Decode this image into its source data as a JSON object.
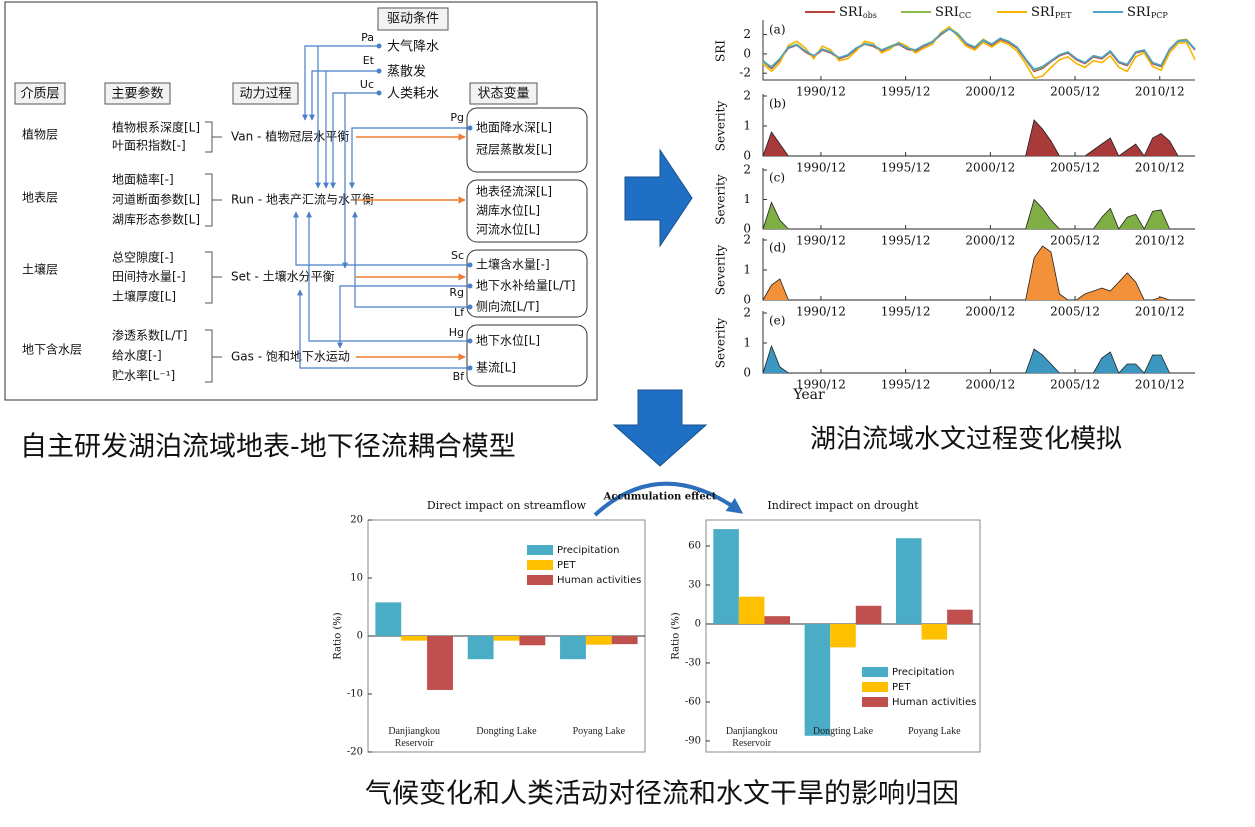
{
  "diagram": {
    "drivers_title": "驱动条件",
    "drivers": [
      {
        "code": "Pa",
        "label": "大气降水"
      },
      {
        "code": "Et",
        "label": "蒸散发"
      },
      {
        "code": "Uc",
        "label": "人类耗水"
      }
    ],
    "headers": [
      "介质层",
      "主要参数",
      "动力过程",
      "状态变量"
    ],
    "layers": [
      {
        "name": "植物层",
        "params": [
          "植物根系深度[L]",
          "叶面积指数[-]"
        ],
        "process": "Van - 植物冠层水平衡",
        "states": [
          {
            "code": "Pg",
            "label": "地面降水深[L]"
          },
          {
            "label": "冠层蒸散发[L]"
          }
        ]
      },
      {
        "name": "地表层",
        "params": [
          "地面糙率[-]",
          "河道断面参数[L]",
          "湖库形态参数[L]"
        ],
        "process": "Run - 地表产汇流与水平衡",
        "states": [
          {
            "label": "地表径流深[L]"
          },
          {
            "label": "湖库水位[L]"
          },
          {
            "label": "河流水位[L]"
          }
        ]
      },
      {
        "name": "土壤层",
        "params": [
          "总空隙度[-]",
          "田间持水量[-]",
          "土壤厚度[L]"
        ],
        "process": "Set - 土壤水分平衡",
        "states": [
          {
            "code": "Sc",
            "label": "土壤含水量[-]"
          },
          {
            "code": "Rg",
            "label": "地下水补给量[L/T]"
          },
          {
            "code": "Lf",
            "label": "侧向流[L/T]"
          }
        ]
      },
      {
        "name": "地下含水层",
        "params": [
          "渗透系数[L/T]",
          "给水度[-]",
          "贮水率[L⁻¹]"
        ],
        "process": "Gas - 饱和地下水运动",
        "states": [
          {
            "code": "Hg",
            "label": "地下水位[L]"
          },
          {
            "code": "Bf",
            "label": "基流[L]"
          }
        ]
      }
    ]
  },
  "captions": {
    "model": "自主研发湖泊流域地表-地下径流耦合模型",
    "simulation": "湖泊流域水文过程变化模拟",
    "attribution": "气候变化和人类活动对径流和水文干旱的影响归因"
  },
  "chart_data": [
    {
      "type": "line",
      "panel_label": "(a)",
      "y_label": "SRI",
      "legend": "above",
      "x": [
        1987.5,
        1988,
        1988.5,
        1989,
        1989.5,
        1990,
        1990.5,
        1991,
        1991.5,
        1992,
        1992.5,
        1993,
        1993.5,
        1994,
        1994.5,
        1995,
        1995.5,
        1996,
        1996.5,
        1997,
        1997.5,
        1998,
        1998.5,
        1999,
        1999.5,
        2000,
        2000.5,
        2001,
        2001.5,
        2002,
        2002.5,
        2003,
        2003.5,
        2004,
        2004.5,
        2005,
        2005.5,
        2006,
        2006.5,
        2007,
        2007.5,
        2008,
        2008.5,
        2009,
        2009.5,
        2010,
        2010.5,
        2011,
        2011.5,
        2012,
        2012.5,
        2013
      ],
      "xlim": [
        1987.5,
        2013
      ],
      "xticks": [
        {
          "value": 1990.92,
          "label": "1990/12"
        },
        {
          "value": 1995.92,
          "label": "1995/12"
        },
        {
          "value": 2000.92,
          "label": "2000/12"
        },
        {
          "value": 2005.92,
          "label": "2005/12"
        },
        {
          "value": 2010.92,
          "label": "2010/12"
        }
      ],
      "ylim": [
        -2.7,
        3.3
      ],
      "yticks": [
        -2,
        0,
        2
      ],
      "series": [
        {
          "name": "SRIobs",
          "color": "#b8403d",
          "values": [
            -0.8,
            -1.5,
            -0.6,
            0.6,
            0.9,
            0.2,
            -0.3,
            0.4,
            0.1,
            -0.5,
            -0.2,
            0.5,
            1.0,
            0.8,
            0.3,
            0.7,
            1.0,
            0.5,
            0.3,
            0.8,
            1.2,
            2.0,
            2.6,
            2.0,
            1.0,
            0.6,
            1.4,
            0.9,
            1.5,
            1.2,
            0.6,
            -0.6,
            -1.8,
            -1.5,
            -0.8,
            -0.2,
            0.1,
            -0.6,
            -1.0,
            -0.3,
            -0.5,
            0.2,
            -0.9,
            -1.2,
            0.1,
            0.3,
            -1.0,
            -1.3,
            0.4,
            1.3,
            1.4,
            0.4
          ]
        },
        {
          "name": "SRICC",
          "color": "#8db84a",
          "values": [
            -0.9,
            -1.3,
            -0.5,
            0.7,
            1.0,
            0.3,
            -0.2,
            0.5,
            0.2,
            -0.4,
            -0.1,
            0.6,
            1.1,
            0.9,
            0.4,
            0.8,
            1.1,
            0.6,
            0.4,
            0.9,
            1.3,
            2.1,
            2.7,
            2.1,
            1.1,
            0.7,
            1.5,
            1.0,
            1.6,
            1.3,
            0.7,
            -0.5,
            -1.7,
            -1.4,
            -0.7,
            -0.1,
            0.2,
            -0.5,
            -0.9,
            -0.2,
            -0.4,
            0.3,
            -0.8,
            -1.1,
            0.2,
            0.4,
            -0.9,
            -1.2,
            0.5,
            1.4,
            1.5,
            0.5
          ]
        },
        {
          "name": "SRIPET",
          "color": "#f5b400",
          "values": [
            -1.0,
            -1.8,
            -0.9,
            0.9,
            1.3,
            0.6,
            -0.5,
            0.8,
            0.4,
            -0.7,
            -0.5,
            0.3,
            1.3,
            1.1,
            0.1,
            0.5,
            1.2,
            0.8,
            0.1,
            0.6,
            1.0,
            2.2,
            2.8,
            1.8,
            0.8,
            0.4,
            1.2,
            0.7,
            1.3,
            1.0,
            0.3,
            -1.0,
            -2.5,
            -2.3,
            -1.4,
            -0.6,
            -0.3,
            -1.0,
            -1.4,
            -0.7,
            -0.9,
            -0.2,
            -1.4,
            -1.8,
            -0.3,
            0.1,
            -1.3,
            -1.7,
            0.1,
            1.1,
            1.2,
            -0.6
          ]
        },
        {
          "name": "SRIPCP",
          "color": "#4aa3c8",
          "values": [
            -0.7,
            -1.4,
            -0.5,
            0.7,
            0.9,
            0.3,
            -0.2,
            0.5,
            0.2,
            -0.4,
            -0.1,
            0.6,
            1.0,
            0.9,
            0.4,
            0.7,
            1.1,
            0.6,
            0.4,
            0.9,
            1.2,
            2.1,
            2.6,
            2.0,
            1.1,
            0.7,
            1.4,
            1.0,
            1.6,
            1.3,
            0.7,
            -0.5,
            -1.6,
            -1.3,
            -0.7,
            -0.1,
            0.2,
            -0.5,
            -0.9,
            -0.2,
            -0.4,
            0.3,
            -0.8,
            -1.1,
            0.2,
            0.4,
            -0.9,
            -1.2,
            0.5,
            1.3,
            1.4,
            0.5
          ]
        }
      ]
    },
    {
      "type": "area",
      "panel_label": "(b)",
      "y_label": "Severity",
      "color": "#a83a3a",
      "x": [
        1987.5,
        1988,
        1988.5,
        1989,
        1989.5,
        1990,
        1990.5,
        1991,
        1991.5,
        1992,
        1992.5,
        1993,
        1993.5,
        1994,
        1994.5,
        1995,
        1995.5,
        1996,
        1996.5,
        1997,
        1997.5,
        1998,
        1998.5,
        1999,
        1999.5,
        2000,
        2000.5,
        2001,
        2001.5,
        2002,
        2002.5,
        2003,
        2003.5,
        2004,
        2004.5,
        2005,
        2005.5,
        2006,
        2006.5,
        2007,
        2007.5,
        2008,
        2008.5,
        2009,
        2009.5,
        2010,
        2010.5,
        2011,
        2011.5,
        2012,
        2012.5,
        2013
      ],
      "xlim": [
        1987.5,
        2013
      ],
      "xticks": [
        {
          "value": 1990.92,
          "label": "1990/12"
        },
        {
          "value": 1995.92,
          "label": "1995/12"
        },
        {
          "value": 2000.92,
          "label": "2000/12"
        },
        {
          "value": 2005.92,
          "label": "2005/12"
        },
        {
          "value": 2010.92,
          "label": "2010/12"
        }
      ],
      "ylim": [
        0,
        2
      ],
      "yticks": [
        0,
        1,
        2
      ],
      "values": [
        0,
        0.8,
        0.4,
        0,
        0,
        0,
        0,
        0,
        0,
        0,
        0,
        0,
        0,
        0,
        0,
        0,
        0,
        0,
        0,
        0,
        0,
        0,
        0,
        0,
        0,
        0,
        0,
        0,
        0,
        0,
        0,
        0,
        1.2,
        0.9,
        0.5,
        0,
        0,
        0,
        0,
        0.2,
        0.4,
        0.6,
        0,
        0.2,
        0.4,
        0,
        0.6,
        0.75,
        0.5,
        0,
        0,
        0
      ]
    },
    {
      "type": "area",
      "panel_label": "(c)",
      "y_label": "Severity",
      "color": "#7fae45",
      "x": [
        1987.5,
        1988,
        1988.5,
        1989,
        1989.5,
        1990,
        1990.5,
        1991,
        1991.5,
        1992,
        1992.5,
        1993,
        1993.5,
        1994,
        1994.5,
        1995,
        1995.5,
        1996,
        1996.5,
        1997,
        1997.5,
        1998,
        1998.5,
        1999,
        1999.5,
        2000,
        2000.5,
        2001,
        2001.5,
        2002,
        2002.5,
        2003,
        2003.5,
        2004,
        2004.5,
        2005,
        2005.5,
        2006,
        2006.5,
        2007,
        2007.5,
        2008,
        2008.5,
        2009,
        2009.5,
        2010,
        2010.5,
        2011,
        2011.5,
        2012,
        2012.5,
        2013
      ],
      "xlim": [
        1987.5,
        2013
      ],
      "xticks": [
        {
          "value": 1990.92,
          "label": "1990/12"
        },
        {
          "value": 1995.92,
          "label": "1995/12"
        },
        {
          "value": 2000.92,
          "label": "2000/12"
        },
        {
          "value": 2005.92,
          "label": "2005/12"
        },
        {
          "value": 2010.92,
          "label": "2010/12"
        }
      ],
      "ylim": [
        0,
        2
      ],
      "yticks": [
        0,
        1,
        2
      ],
      "values": [
        0,
        0.9,
        0.3,
        0,
        0,
        0,
        0,
        0,
        0,
        0,
        0,
        0,
        0,
        0,
        0,
        0,
        0,
        0,
        0,
        0,
        0,
        0,
        0,
        0,
        0,
        0,
        0,
        0,
        0,
        0,
        0,
        0,
        1.0,
        0.7,
        0.3,
        0,
        0,
        0,
        0,
        0,
        0.4,
        0.7,
        0,
        0.4,
        0.5,
        0,
        0.6,
        0.65,
        0,
        0,
        0,
        0
      ]
    },
    {
      "type": "area",
      "panel_label": "(d)",
      "y_label": "Severity",
      "color": "#f2913a",
      "x": [
        1987.5,
        1988,
        1988.5,
        1989,
        1989.5,
        1990,
        1990.5,
        1991,
        1991.5,
        1992,
        1992.5,
        1993,
        1993.5,
        1994,
        1994.5,
        1995,
        1995.5,
        1996,
        1996.5,
        1997,
        1997.5,
        1998,
        1998.5,
        1999,
        1999.5,
        2000,
        2000.5,
        2001,
        2001.5,
        2002,
        2002.5,
        2003,
        2003.5,
        2004,
        2004.5,
        2005,
        2005.5,
        2006,
        2006.5,
        2007,
        2007.5,
        2008,
        2008.5,
        2009,
        2009.5,
        2010,
        2010.5,
        2011,
        2011.5,
        2012,
        2012.5,
        2013
      ],
      "xlim": [
        1987.5,
        2013
      ],
      "xticks": [
        {
          "value": 1990.92,
          "label": "1990/12"
        },
        {
          "value": 1995.92,
          "label": "1995/12"
        },
        {
          "value": 2000.92,
          "label": "2000/12"
        },
        {
          "value": 2005.92,
          "label": "2005/12"
        },
        {
          "value": 2010.92,
          "label": "2010/12"
        }
      ],
      "ylim": [
        0,
        2
      ],
      "yticks": [
        0,
        1,
        2
      ],
      "values": [
        0,
        0.5,
        0.7,
        0,
        0,
        0,
        0,
        0,
        0,
        0,
        0,
        0,
        0,
        0,
        0,
        0,
        0,
        0,
        0,
        0,
        0,
        0,
        0,
        0,
        0,
        0,
        0,
        0,
        0,
        0,
        0,
        0,
        1.4,
        1.8,
        1.6,
        0.2,
        0,
        0,
        0.2,
        0.3,
        0.4,
        0.3,
        0.6,
        0.9,
        0.6,
        0,
        0,
        0.1,
        0,
        0,
        0,
        0
      ]
    },
    {
      "type": "area",
      "panel_label": "(e)",
      "y_label": "Severity",
      "x_label": "Year",
      "color": "#3b97bf",
      "x": [
        1987.5,
        1988,
        1988.5,
        1989,
        1989.5,
        1990,
        1990.5,
        1991,
        1991.5,
        1992,
        1992.5,
        1993,
        1993.5,
        1994,
        1994.5,
        1995,
        1995.5,
        1996,
        1996.5,
        1997,
        1997.5,
        1998,
        1998.5,
        1999,
        1999.5,
        2000,
        2000.5,
        2001,
        2001.5,
        2002,
        2002.5,
        2003,
        2003.5,
        2004,
        2004.5,
        2005,
        2005.5,
        2006,
        2006.5,
        2007,
        2007.5,
        2008,
        2008.5,
        2009,
        2009.5,
        2010,
        2010.5,
        2011,
        2011.5,
        2012,
        2012.5,
        2013
      ],
      "xlim": [
        1987.5,
        2013
      ],
      "xticks": [
        {
          "value": 1990.92,
          "label": "1990/12"
        },
        {
          "value": 1995.92,
          "label": "1995/12"
        },
        {
          "value": 2000.92,
          "label": "2000/12"
        },
        {
          "value": 2005.92,
          "label": "2005/12"
        },
        {
          "value": 2010.92,
          "label": "2010/12"
        }
      ],
      "ylim": [
        0,
        2
      ],
      "yticks": [
        0,
        1,
        2
      ],
      "values": [
        0,
        0.9,
        0.2,
        0,
        0,
        0,
        0,
        0,
        0,
        0,
        0,
        0,
        0,
        0,
        0,
        0,
        0,
        0,
        0,
        0,
        0,
        0,
        0,
        0,
        0,
        0,
        0,
        0,
        0,
        0,
        0,
        0,
        0.8,
        0.6,
        0.3,
        0,
        0,
        0,
        0,
        0,
        0.5,
        0.7,
        0,
        0.3,
        0.3,
        0,
        0.6,
        0.6,
        0,
        0,
        0,
        0
      ]
    },
    {
      "type": "bar",
      "title": "Direct impact on streamflow",
      "y_label": "Ratio (%)",
      "legend": "upper right",
      "annotation": "Accumulation effect",
      "categories": [
        "Danjiangkou Reservoir",
        "Dongting Lake",
        "Poyang Lake"
      ],
      "ylim": [
        -20,
        20
      ],
      "yticks": [
        -20,
        -10,
        0,
        10,
        20
      ],
      "series": [
        {
          "name": "Precipitation",
          "color": "#4bacc6",
          "values": [
            5.8,
            -4.0,
            -4.0
          ]
        },
        {
          "name": "PET",
          "color": "#ffc000",
          "values": [
            -0.8,
            -0.8,
            -1.5
          ]
        },
        {
          "name": "Human activities",
          "color": "#c0504d",
          "values": [
            -9.3,
            -1.6,
            -1.4
          ]
        }
      ]
    },
    {
      "type": "bar",
      "title": "Indirect impact on drought",
      "y_label": "Ratio (%)",
      "legend": "lower right",
      "categories": [
        "Danjiangkou Reservoir",
        "Dongting Lake",
        "Poyang Lake"
      ],
      "ylim": [
        -98.5,
        80
      ],
      "yticks": [
        -90,
        -60,
        -30,
        0,
        30,
        60
      ],
      "series": [
        {
          "name": "Precipitation",
          "color": "#4bacc6",
          "values": [
            73,
            -86,
            66
          ]
        },
        {
          "name": "PET",
          "color": "#ffc000",
          "values": [
            21,
            -18,
            -12
          ]
        },
        {
          "name": "Human activities",
          "color": "#c0504d",
          "values": [
            6,
            14,
            11
          ]
        }
      ]
    }
  ]
}
